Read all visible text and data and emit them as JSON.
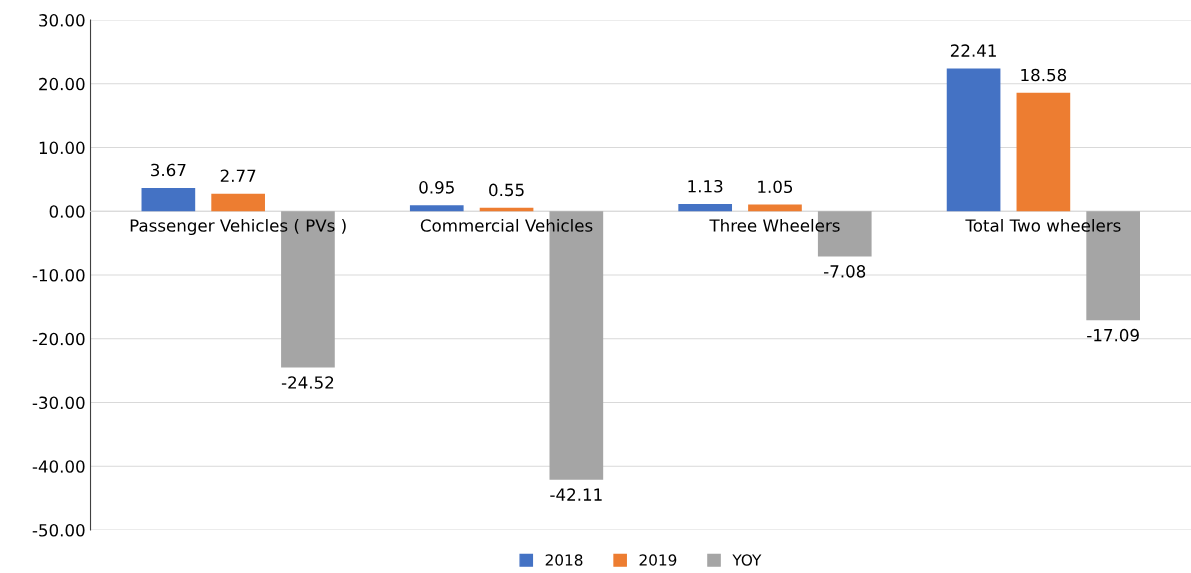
{
  "chart_data": {
    "type": "bar",
    "categories": [
      "Passenger Vehicles ( PVs )",
      "Commercial Vehicles",
      "Three Wheelers",
      "Total Two wheelers"
    ],
    "series": [
      {
        "name": "2018",
        "color": "#4472c4",
        "values": [
          3.67,
          0.95,
          1.13,
          22.41
        ]
      },
      {
        "name": "2019",
        "color": "#ed7d31",
        "values": [
          2.77,
          0.55,
          1.05,
          18.58
        ]
      },
      {
        "name": "YOY",
        "color": "#a5a5a5",
        "values": [
          -24.52,
          -42.11,
          -7.08,
          -17.09
        ]
      }
    ],
    "ylim": [
      -50,
      30
    ],
    "yticks": [
      {
        "value": -50,
        "label": "-50.00"
      },
      {
        "value": -40,
        "label": "-40.00"
      },
      {
        "value": -30,
        "label": "-30.00"
      },
      {
        "value": -20,
        "label": "-20.00"
      },
      {
        "value": -10,
        "label": "-10.00"
      },
      {
        "value": 0,
        "label": "0.00"
      },
      {
        "value": 10,
        "label": "10.00"
      },
      {
        "value": 20,
        "label": "20.00"
      },
      {
        "value": 30,
        "label": "30.00"
      }
    ],
    "grid": "y",
    "legend": "bottom",
    "data_labels": true
  }
}
